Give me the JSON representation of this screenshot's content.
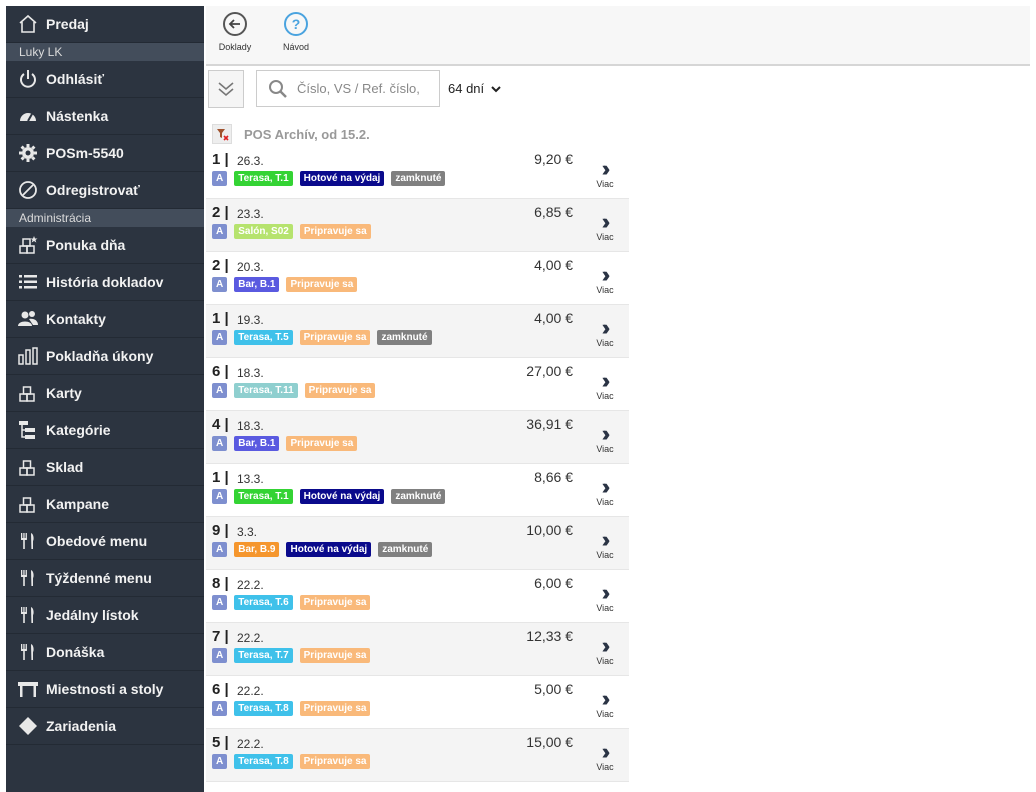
{
  "sidebar": {
    "top": {
      "label": "Predaj",
      "icon": "home-icon"
    },
    "user_section": "Luky LK",
    "user_items": [
      {
        "label": "Odhlásiť",
        "icon": "power-icon",
        "name": "logout"
      },
      {
        "label": "Nástenka",
        "icon": "gauge-icon",
        "name": "dashboard"
      },
      {
        "label": "POSm-5540",
        "icon": "gear-icon",
        "name": "device"
      },
      {
        "label": "Odregistrovať",
        "icon": "ban-icon",
        "name": "unregister"
      }
    ],
    "admin_section": "Administrácia",
    "admin_items": [
      {
        "label": "Ponuka dňa",
        "icon": "cubes-star-icon",
        "name": "daily-offer"
      },
      {
        "label": "História dokladov",
        "icon": "list-icon",
        "name": "document-history"
      },
      {
        "label": "Kontakty",
        "icon": "users-icon",
        "name": "contacts"
      },
      {
        "label": "Pokladňa úkony",
        "icon": "bars-chart-icon",
        "name": "register-actions"
      },
      {
        "label": "Karty",
        "icon": "cubes-icon",
        "name": "cards"
      },
      {
        "label": "Kategórie",
        "icon": "tree-icon",
        "name": "categories"
      },
      {
        "label": "Sklad",
        "icon": "cubes-icon",
        "name": "warehouse"
      },
      {
        "label": "Kampane",
        "icon": "cubes-icon",
        "name": "campaigns"
      },
      {
        "label": "Obedové menu",
        "icon": "cutlery-icon",
        "name": "lunch-menu"
      },
      {
        "label": "Týždenné menu",
        "icon": "cutlery-icon",
        "name": "weekly-menu"
      },
      {
        "label": "Jedálny lístok",
        "icon": "cutlery-icon",
        "name": "menu-card"
      },
      {
        "label": "Donáška",
        "icon": "cutlery-icon",
        "name": "delivery"
      },
      {
        "label": "Miestnosti a stoly",
        "icon": "table-icon",
        "name": "rooms-tables"
      },
      {
        "label": "Zariadenia",
        "icon": "diamond-icon",
        "name": "devices"
      }
    ]
  },
  "toolbar": {
    "back_label": "Doklady",
    "help_label": "Návod",
    "back_icon": "arrow-left-circle-icon",
    "help_icon": "question-circle-icon"
  },
  "filter": {
    "search_placeholder": "Číslo, VS / Ref. číslo,",
    "period": "64 dní"
  },
  "archive": {
    "title": "POS Archív, od 15.2."
  },
  "more_label": "Viac",
  "colors": {
    "sidebar_bg": "#2c3440",
    "section_bg": "#434d5b",
    "badge_a": "#7e8fcf",
    "status_ready": "#0a0a8c",
    "status_preparing": "#f9b97a",
    "status_locked": "#808080"
  },
  "documents": [
    {
      "num": "1",
      "date": "26.3.",
      "amount": "9,20 €",
      "type": "A",
      "table": "Terasa, T.1",
      "table_color": "#34d334",
      "status": "Hotové na výdaj",
      "status_color": "#0a0a8c",
      "locked": "zamknuté"
    },
    {
      "num": "2",
      "date": "23.3.",
      "amount": "6,85 €",
      "type": "A",
      "table": "Salón, S02",
      "table_color": "#b6e36e",
      "status": "Pripravuje sa",
      "status_color": "#f9b97a",
      "locked": ""
    },
    {
      "num": "2",
      "date": "20.3.",
      "amount": "4,00 €",
      "type": "A",
      "table": "Bar, B.1",
      "table_color": "#5a5ae0",
      "status": "Pripravuje sa",
      "status_color": "#f9b97a",
      "locked": ""
    },
    {
      "num": "1",
      "date": "19.3.",
      "amount": "4,00 €",
      "type": "A",
      "table": "Terasa, T.5",
      "table_color": "#3fc1ea",
      "status": "Pripravuje sa",
      "status_color": "#f9b97a",
      "locked": "zamknuté"
    },
    {
      "num": "6",
      "date": "18.3.",
      "amount": "27,00 €",
      "type": "A",
      "table": "Terasa, T.11",
      "table_color": "#8fcfcf",
      "status": "Pripravuje sa",
      "status_color": "#f9b97a",
      "locked": ""
    },
    {
      "num": "4",
      "date": "18.3.",
      "amount": "36,91 €",
      "type": "A",
      "table": "Bar, B.1",
      "table_color": "#5a5ae0",
      "status": "Pripravuje sa",
      "status_color": "#f9b97a",
      "locked": ""
    },
    {
      "num": "1",
      "date": "13.3.",
      "amount": "8,66 €",
      "type": "A",
      "table": "Terasa, T.1",
      "table_color": "#34d334",
      "status": "Hotové na výdaj",
      "status_color": "#0a0a8c",
      "locked": "zamknuté"
    },
    {
      "num": "9",
      "date": "3.3.",
      "amount": "10,00 €",
      "type": "A",
      "table": "Bar, B.9",
      "table_color": "#f5962d",
      "status": "Hotové na výdaj",
      "status_color": "#0a0a8c",
      "locked": "zamknuté"
    },
    {
      "num": "8",
      "date": "22.2.",
      "amount": "6,00 €",
      "type": "A",
      "table": "Terasa, T.6",
      "table_color": "#3fc1ea",
      "status": "Pripravuje sa",
      "status_color": "#f9b97a",
      "locked": ""
    },
    {
      "num": "7",
      "date": "22.2.",
      "amount": "12,33 €",
      "type": "A",
      "table": "Terasa, T.7",
      "table_color": "#3fc1ea",
      "status": "Pripravuje sa",
      "status_color": "#f9b97a",
      "locked": ""
    },
    {
      "num": "6",
      "date": "22.2.",
      "amount": "5,00 €",
      "type": "A",
      "table": "Terasa, T.8",
      "table_color": "#3fc1ea",
      "status": "Pripravuje sa",
      "status_color": "#f9b97a",
      "locked": ""
    },
    {
      "num": "5",
      "date": "22.2.",
      "amount": "15,00 €",
      "type": "A",
      "table": "Terasa, T.8",
      "table_color": "#3fc1ea",
      "status": "Pripravuje sa",
      "status_color": "#f9b97a",
      "locked": ""
    }
  ]
}
